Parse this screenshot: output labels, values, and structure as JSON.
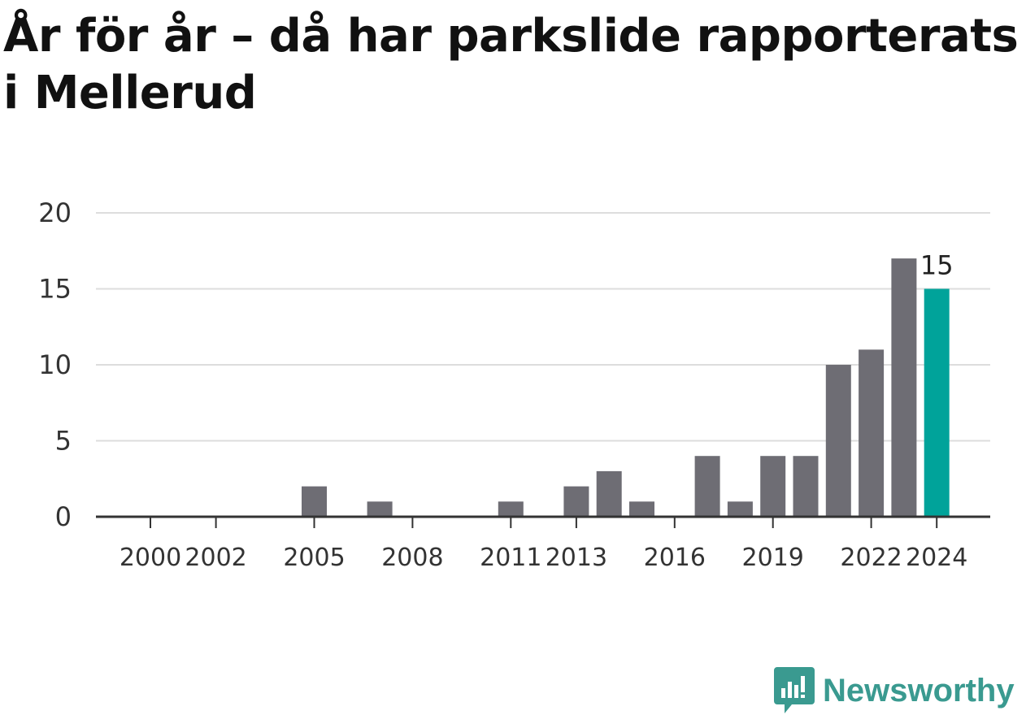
{
  "chart_data": {
    "type": "bar",
    "title": "År för år – då har parkslide rapporterats i Mellerud",
    "categories": [
      "2000",
      "2001",
      "2002",
      "2003",
      "2004",
      "2005",
      "2006",
      "2007",
      "2008",
      "2009",
      "2010",
      "2011",
      "2012",
      "2013",
      "2014",
      "2015",
      "2016",
      "2017",
      "2018",
      "2019",
      "2020",
      "2021",
      "2022",
      "2023",
      "2024"
    ],
    "values": [
      0,
      0,
      0,
      0,
      0,
      2,
      0,
      1,
      0,
      0,
      0,
      1,
      0,
      2,
      3,
      1,
      0,
      4,
      1,
      4,
      4,
      10,
      11,
      17,
      15
    ],
    "x_tick_labels": [
      "2000",
      "2002",
      "2005",
      "2008",
      "2011",
      "2013",
      "2016",
      "2019",
      "2022",
      "2024"
    ],
    "y_ticks": [
      "0",
      "5",
      "10",
      "15",
      "20"
    ],
    "ylim": [
      0,
      20
    ],
    "grid": true,
    "highlight": {
      "category": "2024",
      "label": "15",
      "color": "#00a39a"
    },
    "bar_color": "#6e6d74",
    "xlabel": "",
    "ylabel": ""
  },
  "brand": {
    "name": "Newsworthy",
    "color": "#3a9a90"
  }
}
